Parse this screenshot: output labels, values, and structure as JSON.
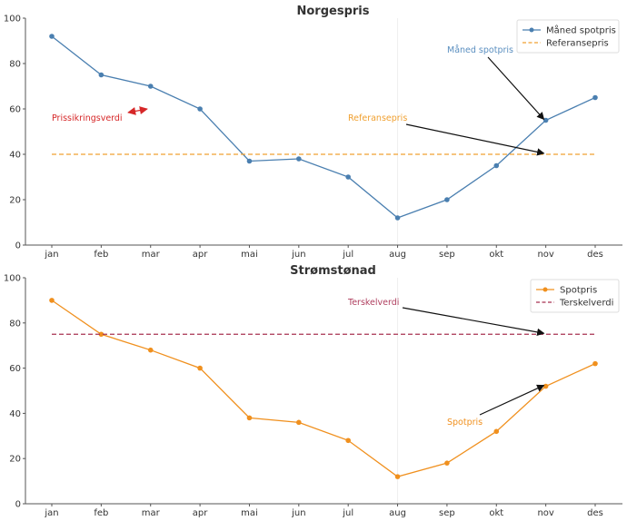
{
  "chart_data": [
    {
      "type": "line",
      "title": "Norgespris",
      "xlabel": "",
      "ylabel": "",
      "categories": [
        "jan",
        "feb",
        "mar",
        "apr",
        "mai",
        "jun",
        "jul",
        "aug",
        "sep",
        "okt",
        "nov",
        "des"
      ],
      "ylim": [
        0,
        100
      ],
      "yticks": [
        0,
        20,
        40,
        60,
        80,
        100
      ],
      "grid": false,
      "legend_position": "top-right",
      "series": [
        {
          "name": "Måned spotpris",
          "style": "solid-marker",
          "color": "#4a7fb0",
          "values": [
            92,
            75,
            70,
            60,
            37,
            38,
            30,
            12,
            20,
            35,
            55,
            65
          ]
        },
        {
          "name": "Referansepris",
          "style": "dashed",
          "color": "#f0a030",
          "values": [
            40,
            40,
            40,
            40,
            40,
            40,
            40,
            40,
            40,
            40,
            40,
            40
          ]
        }
      ],
      "annotations": [
        {
          "text": "Måned spotpris",
          "color": "#5b8fc0",
          "points_to": {
            "x": "nov",
            "y": 55
          }
        },
        {
          "text": "Referansepris",
          "color": "#f0a030",
          "points_to": {
            "x": "nov",
            "y": 40
          }
        },
        {
          "text": "Prissikringsverdi",
          "color": "#d62728",
          "arrow": "double"
        }
      ]
    },
    {
      "type": "line",
      "title": "Strømstønad",
      "xlabel": "",
      "ylabel": "",
      "categories": [
        "jan",
        "feb",
        "mar",
        "apr",
        "mai",
        "jun",
        "jul",
        "aug",
        "sep",
        "okt",
        "nov",
        "des"
      ],
      "ylim": [
        0,
        100
      ],
      "yticks": [
        0,
        20,
        40,
        60,
        80,
        100
      ],
      "grid": false,
      "legend_position": "top-right",
      "series": [
        {
          "name": "Spotpris",
          "style": "solid-marker",
          "color": "#f0901e",
          "values": [
            90,
            75,
            68,
            60,
            38,
            36,
            28,
            12,
            18,
            32,
            52,
            62
          ]
        },
        {
          "name": "Terskelverdi",
          "style": "dashed",
          "color": "#a83250",
          "values": [
            75,
            75,
            75,
            75,
            75,
            75,
            75,
            75,
            75,
            75,
            75,
            75
          ]
        }
      ],
      "annotations": [
        {
          "text": "Terskelverdi",
          "color": "#b04060",
          "points_to": {
            "x": "nov",
            "y": 75
          }
        },
        {
          "text": "Spotpris",
          "color": "#f0901e",
          "points_to": {
            "x": "nov",
            "y": 52
          }
        }
      ]
    }
  ]
}
